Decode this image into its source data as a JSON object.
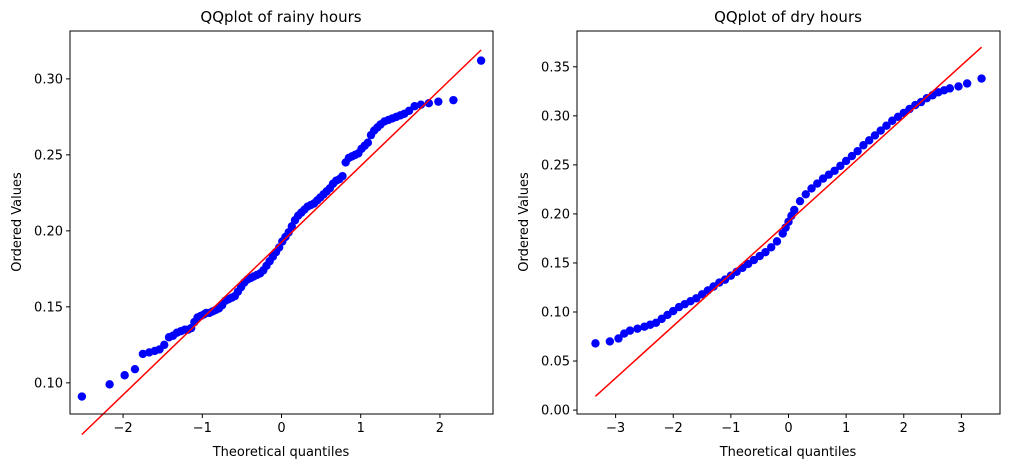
{
  "chart_data": [
    {
      "type": "scatter",
      "title": "QQplot of rainy hours",
      "xlabel": "Theoretical quantiles",
      "ylabel": "Ordered Values",
      "xlim": [
        -2.67,
        2.67
      ],
      "ylim": [
        0.0795,
        0.3315
      ],
      "xticks": [
        -2,
        -1,
        0,
        1,
        2
      ],
      "xtick_labels": [
        "−2",
        "−1",
        "0",
        "1",
        "2"
      ],
      "yticks": [
        0.1,
        0.15,
        0.2,
        0.25,
        0.3
      ],
      "ytick_labels": [
        "0.10",
        "0.15",
        "0.20",
        "0.25",
        "0.30"
      ],
      "grid": false,
      "marker_color": "#0000ff",
      "line_color": "#ff0000",
      "fit_line": {
        "x": [
          -2.52,
          2.52
        ],
        "y": [
          0.066,
          0.319
        ]
      },
      "series": [
        {
          "x": [
            -2.52,
            -2.17,
            -1.98,
            -1.85,
            -1.75,
            -1.67,
            -1.6,
            -1.54,
            -1.48,
            -1.42,
            -1.37,
            -1.32,
            -1.27,
            -1.22,
            -1.18,
            -1.14,
            -1.1,
            -1.06,
            -1.02,
            -0.98,
            -0.95,
            -0.91,
            -0.87,
            -0.83,
            -0.79,
            -0.75,
            -0.71,
            -0.67,
            -0.63,
            -0.59,
            -0.55,
            -0.51,
            -0.47,
            -0.43,
            -0.39,
            -0.35,
            -0.31,
            -0.27,
            -0.23,
            -0.19,
            -0.15,
            -0.11,
            -0.07,
            -0.03,
            0.01,
            0.05,
            0.09,
            0.13,
            0.17,
            0.21,
            0.25,
            0.29,
            0.33,
            0.37,
            0.41,
            0.45,
            0.49,
            0.53,
            0.57,
            0.61,
            0.65,
            0.69,
            0.73,
            0.77,
            0.81,
            0.85,
            0.89,
            0.93,
            0.97,
            1.01,
            1.05,
            1.09,
            1.13,
            1.17,
            1.21,
            1.25,
            1.3,
            1.35,
            1.4,
            1.45,
            1.5,
            1.55,
            1.61,
            1.68,
            1.76,
            1.86,
            1.98,
            2.17,
            2.52
          ],
          "y": [
            0.091,
            0.099,
            0.105,
            0.109,
            0.119,
            0.12,
            0.121,
            0.122,
            0.125,
            0.13,
            0.131,
            0.133,
            0.134,
            0.135,
            0.135,
            0.136,
            0.14,
            0.143,
            0.144,
            0.145,
            0.146,
            0.146,
            0.147,
            0.148,
            0.149,
            0.151,
            0.154,
            0.155,
            0.156,
            0.157,
            0.16,
            0.163,
            0.166,
            0.168,
            0.169,
            0.17,
            0.171,
            0.172,
            0.174,
            0.177,
            0.18,
            0.183,
            0.186,
            0.189,
            0.193,
            0.196,
            0.199,
            0.203,
            0.207,
            0.21,
            0.212,
            0.214,
            0.216,
            0.217,
            0.218,
            0.22,
            0.222,
            0.224,
            0.226,
            0.228,
            0.231,
            0.233,
            0.234,
            0.236,
            0.245,
            0.248,
            0.249,
            0.25,
            0.251,
            0.254,
            0.256,
            0.258,
            0.263,
            0.266,
            0.268,
            0.27,
            0.272,
            0.273,
            0.274,
            0.275,
            0.276,
            0.277,
            0.279,
            0.282,
            0.283,
            0.284,
            0.285,
            0.286,
            0.312
          ]
        }
      ]
    },
    {
      "type": "scatter",
      "title": "QQplot of dry hours",
      "xlabel": "Theoretical quantiles",
      "ylabel": "Ordered Values",
      "xlim": [
        -3.67,
        3.67
      ],
      "ylim": [
        -0.004,
        0.3865
      ],
      "xticks": [
        -3,
        -2,
        -1,
        0,
        1,
        2,
        3
      ],
      "xtick_labels": [
        "−3",
        "−2",
        "−1",
        "0",
        "1",
        "2",
        "3"
      ],
      "yticks": [
        0.0,
        0.05,
        0.1,
        0.15,
        0.2,
        0.25,
        0.3,
        0.35
      ],
      "ytick_labels": [
        "0.00",
        "0.05",
        "0.10",
        "0.15",
        "0.20",
        "0.25",
        "0.30",
        "0.35"
      ],
      "grid": false,
      "marker_color": "#0000ff",
      "line_color": "#ff0000",
      "fit_line": {
        "x": [
          -3.35,
          3.35
        ],
        "y": [
          0.014,
          0.37
        ]
      },
      "series": [
        {
          "x": [
            -3.35,
            -3.1,
            -2.95,
            -2.85,
            -2.75,
            -2.62,
            -2.5,
            -2.4,
            -2.3,
            -2.2,
            -2.1,
            -2.0,
            -1.9,
            -1.8,
            -1.7,
            -1.6,
            -1.5,
            -1.4,
            -1.3,
            -1.2,
            -1.1,
            -1.0,
            -0.9,
            -0.8,
            -0.7,
            -0.6,
            -0.5,
            -0.4,
            -0.3,
            -0.2,
            -0.1,
            -0.05,
            0.0,
            0.05,
            0.1,
            0.2,
            0.3,
            0.4,
            0.5,
            0.6,
            0.7,
            0.8,
            0.9,
            1.0,
            1.1,
            1.2,
            1.3,
            1.4,
            1.5,
            1.6,
            1.7,
            1.8,
            1.9,
            2.0,
            2.1,
            2.2,
            2.3,
            2.4,
            2.5,
            2.6,
            2.7,
            2.8,
            2.95,
            3.1,
            3.35
          ],
          "y": [
            0.068,
            0.07,
            0.073,
            0.078,
            0.081,
            0.083,
            0.085,
            0.087,
            0.089,
            0.093,
            0.097,
            0.101,
            0.105,
            0.108,
            0.111,
            0.114,
            0.118,
            0.122,
            0.126,
            0.13,
            0.133,
            0.137,
            0.141,
            0.145,
            0.149,
            0.153,
            0.157,
            0.161,
            0.166,
            0.172,
            0.18,
            0.186,
            0.192,
            0.198,
            0.204,
            0.213,
            0.22,
            0.226,
            0.231,
            0.236,
            0.24,
            0.244,
            0.249,
            0.254,
            0.259,
            0.264,
            0.27,
            0.275,
            0.28,
            0.285,
            0.29,
            0.295,
            0.299,
            0.303,
            0.307,
            0.311,
            0.314,
            0.318,
            0.321,
            0.324,
            0.326,
            0.328,
            0.33,
            0.333,
            0.338
          ]
        }
      ]
    }
  ]
}
